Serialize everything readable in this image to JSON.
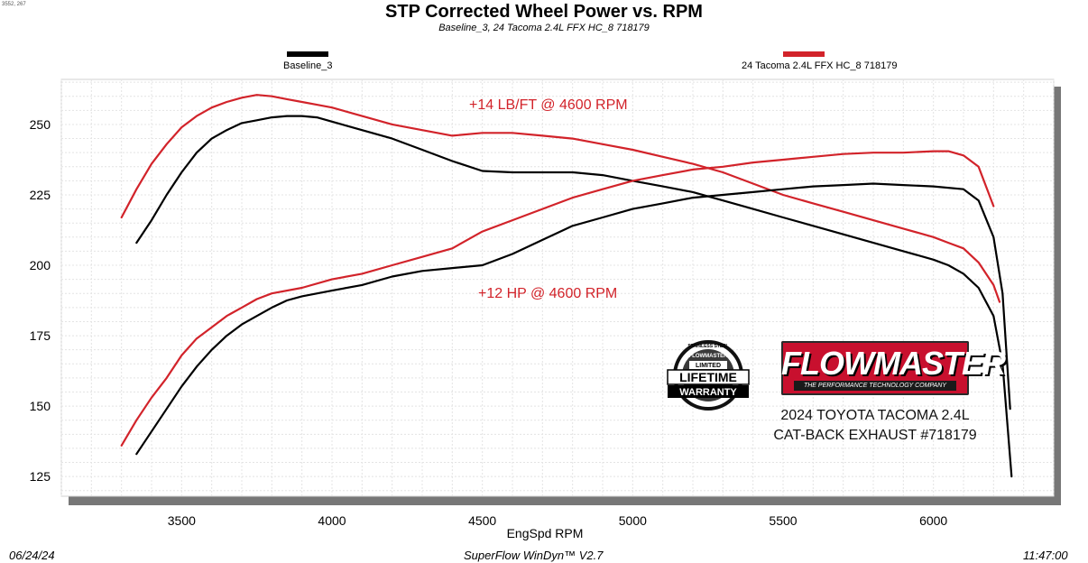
{
  "header": {
    "title": "STP Corrected Wheel Power vs. RPM",
    "subtitle": "Baseline_3, 24 Tacoma 2.4L FFX HC_8 718179",
    "corner_id": "3552, 267"
  },
  "legend": {
    "baseline_label": "Baseline_3",
    "modified_label": "24 Tacoma 2.4L FFX HC_8 718179",
    "baseline_color": "#000000",
    "modified_color": "#d2232a",
    "placement": "top"
  },
  "annotations": {
    "torque_gain": "+14 LB/FT @ 4600 RPM",
    "hp_gain": "+12 HP @ 4600 RPM",
    "vehicle_line1": "2024 TOYOTA TACOMA 2.4L",
    "vehicle_line2": "CAT-BACK EXHAUST #718179"
  },
  "logos": {
    "warranty_text": [
      "STAINLESS STEEL",
      "FLOWMASTER",
      "LIMITED",
      "LIFETIME",
      "WARRANTY"
    ],
    "flowmaster_word": "FLOWMASTER",
    "flowmaster_tagline": "THE PERFORMANCE TECHNOLOGY COMPANY"
  },
  "footer": {
    "date": "06/24/24",
    "software": "SuperFlow WinDyn™ V2.7",
    "time": "11:47:00"
  },
  "chart_data": {
    "type": "line",
    "xlabel": "EngSpd  RPM",
    "ylabel": "",
    "xlim": [
      3100,
      6400
    ],
    "ylim": [
      118,
      266
    ],
    "xticks": [
      3500,
      4000,
      4500,
      5000,
      5500,
      6000
    ],
    "yticks": [
      125,
      150,
      175,
      200,
      225,
      250
    ],
    "grid": true,
    "series": [
      {
        "name": "Baseline_3",
        "kind": "torque",
        "color": "#000000",
        "points": [
          [
            3350,
            208
          ],
          [
            3400,
            216
          ],
          [
            3450,
            225
          ],
          [
            3500,
            233
          ],
          [
            3550,
            240
          ],
          [
            3600,
            245
          ],
          [
            3650,
            248
          ],
          [
            3700,
            250.5
          ],
          [
            3750,
            251.5
          ],
          [
            3800,
            252.5
          ],
          [
            3850,
            253
          ],
          [
            3900,
            253
          ],
          [
            3950,
            252.5
          ],
          [
            4000,
            251
          ],
          [
            4100,
            248
          ],
          [
            4200,
            245
          ],
          [
            4300,
            241
          ],
          [
            4400,
            237
          ],
          [
            4500,
            233.5
          ],
          [
            4600,
            233
          ],
          [
            4700,
            233
          ],
          [
            4800,
            233
          ],
          [
            4900,
            232
          ],
          [
            5000,
            230
          ],
          [
            5100,
            228
          ],
          [
            5200,
            226
          ],
          [
            5300,
            223
          ],
          [
            5400,
            220
          ],
          [
            5500,
            217
          ],
          [
            5600,
            214
          ],
          [
            5700,
            211
          ],
          [
            5800,
            208
          ],
          [
            5900,
            205
          ],
          [
            6000,
            202
          ],
          [
            6050,
            200
          ],
          [
            6100,
            197
          ],
          [
            6150,
            192
          ],
          [
            6200,
            182
          ],
          [
            6230,
            165
          ],
          [
            6260,
            125
          ]
        ]
      },
      {
        "name": "24 Tacoma 2.4L FFX HC_8 718179",
        "kind": "torque",
        "color": "#d2232a",
        "points": [
          [
            3300,
            217
          ],
          [
            3350,
            227
          ],
          [
            3400,
            236
          ],
          [
            3450,
            243
          ],
          [
            3500,
            249
          ],
          [
            3550,
            253
          ],
          [
            3600,
            256
          ],
          [
            3650,
            258
          ],
          [
            3700,
            259.5
          ],
          [
            3750,
            260.5
          ],
          [
            3800,
            260
          ],
          [
            3850,
            259
          ],
          [
            3900,
            258
          ],
          [
            3950,
            257
          ],
          [
            4000,
            256
          ],
          [
            4100,
            253
          ],
          [
            4200,
            250
          ],
          [
            4300,
            248
          ],
          [
            4400,
            246
          ],
          [
            4500,
            247
          ],
          [
            4600,
            247
          ],
          [
            4700,
            246
          ],
          [
            4800,
            245
          ],
          [
            4900,
            243
          ],
          [
            5000,
            241
          ],
          [
            5100,
            238.5
          ],
          [
            5200,
            236
          ],
          [
            5300,
            233
          ],
          [
            5400,
            229
          ],
          [
            5500,
            225
          ],
          [
            5600,
            222
          ],
          [
            5700,
            219
          ],
          [
            5800,
            216
          ],
          [
            5900,
            213
          ],
          [
            6000,
            210
          ],
          [
            6050,
            208
          ],
          [
            6100,
            206
          ],
          [
            6150,
            201
          ],
          [
            6200,
            193
          ],
          [
            6220,
            187
          ]
        ]
      },
      {
        "name": "Baseline_3",
        "kind": "power",
        "color": "#000000",
        "points": [
          [
            3350,
            133
          ],
          [
            3400,
            141
          ],
          [
            3450,
            149
          ],
          [
            3500,
            157
          ],
          [
            3550,
            164
          ],
          [
            3600,
            170
          ],
          [
            3650,
            175
          ],
          [
            3700,
            179
          ],
          [
            3750,
            182
          ],
          [
            3800,
            185
          ],
          [
            3850,
            187.5
          ],
          [
            3900,
            189
          ],
          [
            4000,
            191
          ],
          [
            4100,
            193
          ],
          [
            4200,
            196
          ],
          [
            4300,
            198
          ],
          [
            4400,
            199
          ],
          [
            4500,
            200
          ],
          [
            4600,
            204
          ],
          [
            4700,
            209
          ],
          [
            4800,
            214
          ],
          [
            4900,
            217
          ],
          [
            5000,
            220
          ],
          [
            5100,
            222
          ],
          [
            5200,
            224
          ],
          [
            5300,
            225
          ],
          [
            5400,
            226
          ],
          [
            5500,
            227
          ],
          [
            5600,
            228
          ],
          [
            5700,
            228.5
          ],
          [
            5800,
            229
          ],
          [
            5900,
            228.5
          ],
          [
            6000,
            228
          ],
          [
            6100,
            227
          ],
          [
            6150,
            223
          ],
          [
            6200,
            210
          ],
          [
            6230,
            190
          ],
          [
            6255,
            149
          ]
        ]
      },
      {
        "name": "24 Tacoma 2.4L FFX HC_8 718179",
        "kind": "power",
        "color": "#d2232a",
        "points": [
          [
            3300,
            136
          ],
          [
            3350,
            145
          ],
          [
            3400,
            153
          ],
          [
            3450,
            160
          ],
          [
            3500,
            168
          ],
          [
            3550,
            174
          ],
          [
            3600,
            178
          ],
          [
            3650,
            182
          ],
          [
            3700,
            185
          ],
          [
            3750,
            188
          ],
          [
            3800,
            190
          ],
          [
            3900,
            192
          ],
          [
            4000,
            195
          ],
          [
            4100,
            197
          ],
          [
            4200,
            200
          ],
          [
            4300,
            203
          ],
          [
            4400,
            206
          ],
          [
            4500,
            212
          ],
          [
            4600,
            216
          ],
          [
            4700,
            220
          ],
          [
            4800,
            224
          ],
          [
            4900,
            227
          ],
          [
            5000,
            230
          ],
          [
            5100,
            232
          ],
          [
            5200,
            234
          ],
          [
            5300,
            235
          ],
          [
            5400,
            236.5
          ],
          [
            5500,
            237.5
          ],
          [
            5600,
            238.5
          ],
          [
            5700,
            239.5
          ],
          [
            5800,
            240
          ],
          [
            5900,
            240
          ],
          [
            6000,
            240.5
          ],
          [
            6050,
            240.5
          ],
          [
            6100,
            239
          ],
          [
            6150,
            235
          ],
          [
            6200,
            221
          ]
        ]
      }
    ]
  }
}
